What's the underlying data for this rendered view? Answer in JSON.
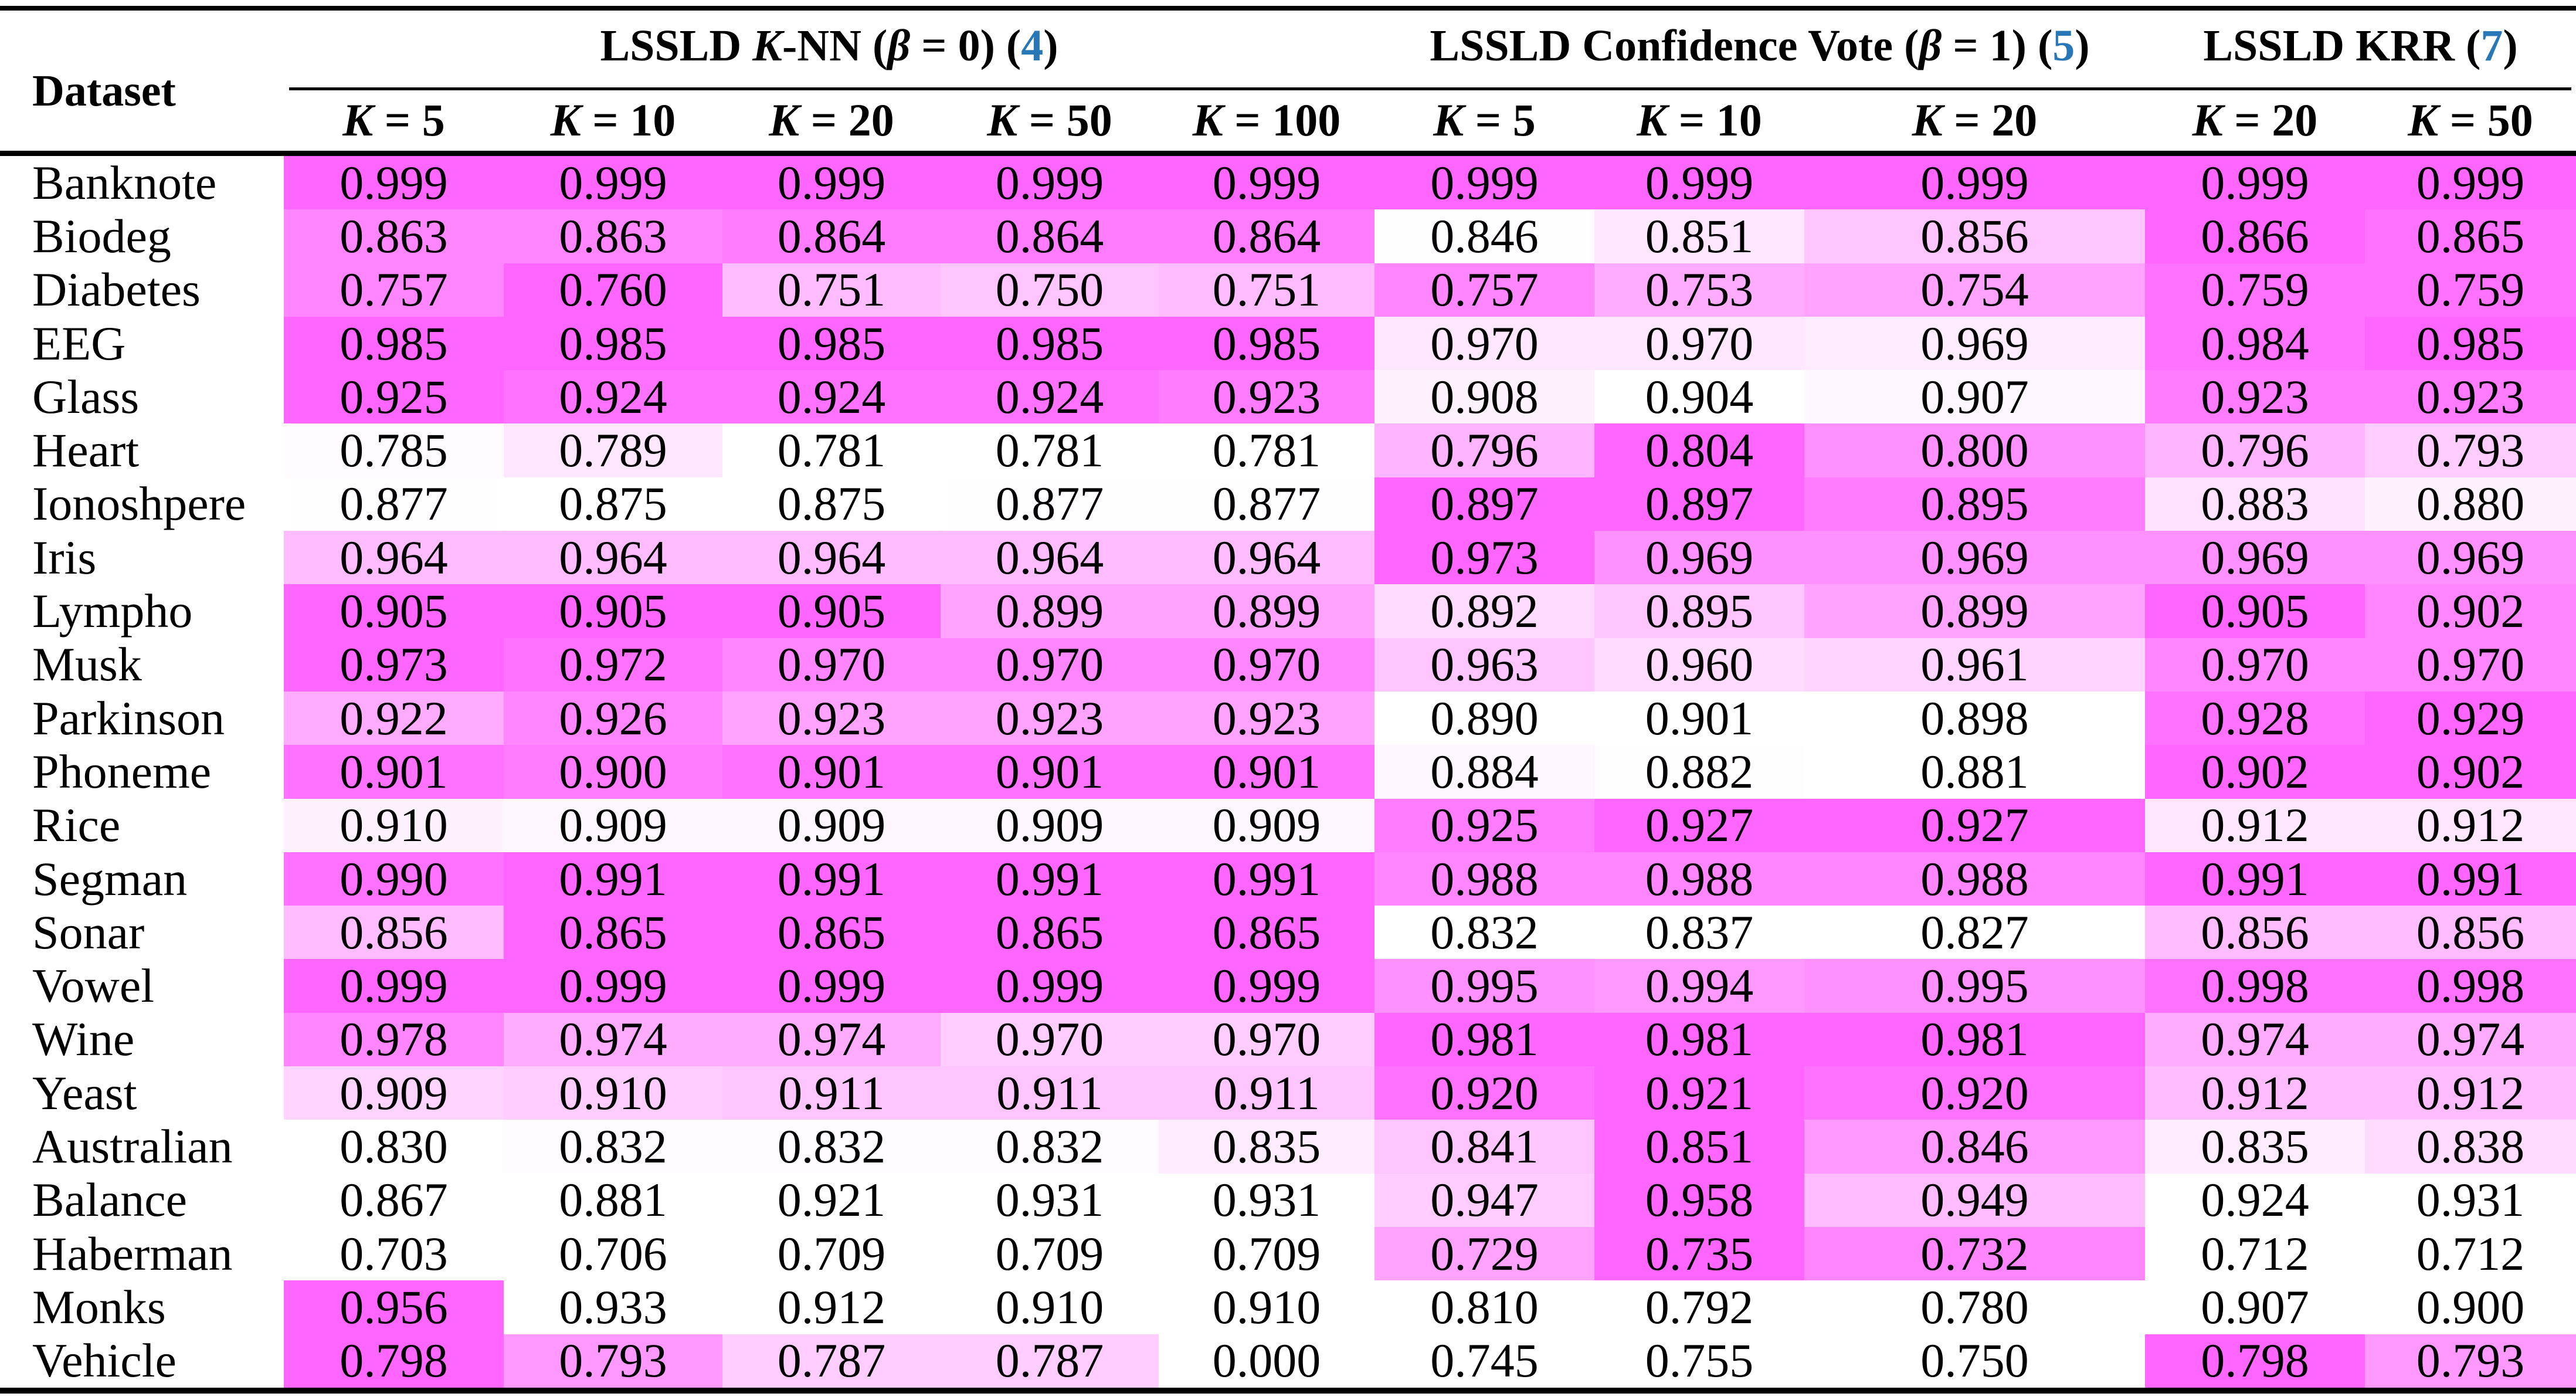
{
  "heatmap": {
    "max_color": "#ff66ff",
    "min_color": "#ffffff",
    "window": 0.021,
    "gamma": 1.5
  },
  "link_color": "#2878b8",
  "table": {
    "dataset_header": "Dataset",
    "groups": [
      {
        "title": "LSSLD K-NN (β = 0)",
        "ref": "4",
        "columns": [
          "K = 5",
          "K = 10",
          "K = 20",
          "K = 50",
          "K = 100"
        ]
      },
      {
        "title": "LSSLD Confidence Vote (β = 1)",
        "ref": "5",
        "columns": [
          "K = 5",
          "K = 10",
          "K = 20"
        ]
      },
      {
        "title": "LSSLD KRR",
        "ref": "7",
        "columns": [
          "K = 20",
          "K = 50"
        ]
      }
    ],
    "rows": [
      {
        "label": "Banknote",
        "values": [
          0.999,
          0.999,
          0.999,
          0.999,
          0.999,
          0.999,
          0.999,
          0.999,
          0.999,
          0.999
        ]
      },
      {
        "label": "Biodeg",
        "values": [
          0.863,
          0.863,
          0.864,
          0.864,
          0.864,
          0.846,
          0.851,
          0.856,
          0.866,
          0.865
        ]
      },
      {
        "label": "Diabetes",
        "values": [
          0.757,
          0.76,
          0.751,
          0.75,
          0.751,
          0.757,
          0.753,
          0.754,
          0.759,
          0.759
        ]
      },
      {
        "label": "EEG",
        "values": [
          0.985,
          0.985,
          0.985,
          0.985,
          0.985,
          0.97,
          0.97,
          0.969,
          0.984,
          0.985
        ]
      },
      {
        "label": "Glass",
        "values": [
          0.925,
          0.924,
          0.924,
          0.924,
          0.923,
          0.908,
          0.904,
          0.907,
          0.923,
          0.923
        ]
      },
      {
        "label": "Heart",
        "values": [
          0.785,
          0.789,
          0.781,
          0.781,
          0.781,
          0.796,
          0.804,
          0.8,
          0.796,
          0.793
        ]
      },
      {
        "label": "Ionoshpere",
        "values": [
          0.877,
          0.875,
          0.875,
          0.877,
          0.877,
          0.897,
          0.897,
          0.895,
          0.883,
          0.88
        ]
      },
      {
        "label": "Iris",
        "values": [
          0.964,
          0.964,
          0.964,
          0.964,
          0.964,
          0.973,
          0.969,
          0.969,
          0.969,
          0.969
        ]
      },
      {
        "label": "Lympho",
        "values": [
          0.905,
          0.905,
          0.905,
          0.899,
          0.899,
          0.892,
          0.895,
          0.899,
          0.905,
          0.902
        ]
      },
      {
        "label": "Musk",
        "values": [
          0.973,
          0.972,
          0.97,
          0.97,
          0.97,
          0.963,
          0.96,
          0.961,
          0.97,
          0.97
        ]
      },
      {
        "label": "Parkinson",
        "values": [
          0.922,
          0.926,
          0.923,
          0.923,
          0.923,
          0.89,
          0.901,
          0.898,
          0.928,
          0.929
        ]
      },
      {
        "label": "Phoneme",
        "values": [
          0.901,
          0.9,
          0.901,
          0.901,
          0.901,
          0.884,
          0.882,
          0.881,
          0.902,
          0.902
        ]
      },
      {
        "label": "Rice",
        "values": [
          0.91,
          0.909,
          0.909,
          0.909,
          0.909,
          0.925,
          0.927,
          0.927,
          0.912,
          0.912
        ]
      },
      {
        "label": "Segman",
        "values": [
          0.99,
          0.991,
          0.991,
          0.991,
          0.991,
          0.988,
          0.988,
          0.988,
          0.991,
          0.991
        ]
      },
      {
        "label": "Sonar",
        "values": [
          0.856,
          0.865,
          0.865,
          0.865,
          0.865,
          0.832,
          0.837,
          0.827,
          0.856,
          0.856
        ]
      },
      {
        "label": "Vowel",
        "values": [
          0.999,
          0.999,
          0.999,
          0.999,
          0.999,
          0.995,
          0.994,
          0.995,
          0.998,
          0.998
        ]
      },
      {
        "label": "Wine",
        "values": [
          0.978,
          0.974,
          0.974,
          0.97,
          0.97,
          0.981,
          0.981,
          0.981,
          0.974,
          0.974
        ]
      },
      {
        "label": "Yeast",
        "values": [
          0.909,
          0.91,
          0.911,
          0.911,
          0.911,
          0.92,
          0.921,
          0.92,
          0.912,
          0.912
        ]
      },
      {
        "label": "Australian",
        "values": [
          0.83,
          0.832,
          0.832,
          0.832,
          0.835,
          0.841,
          0.851,
          0.846,
          0.835,
          0.838
        ]
      },
      {
        "label": "Balance",
        "values": [
          0.867,
          0.881,
          0.921,
          0.931,
          0.931,
          0.947,
          0.958,
          0.949,
          0.924,
          0.931
        ]
      },
      {
        "label": "Haberman",
        "values": [
          0.703,
          0.706,
          0.709,
          0.709,
          0.709,
          0.729,
          0.735,
          0.732,
          0.712,
          0.712
        ]
      },
      {
        "label": "Monks",
        "values": [
          0.956,
          0.933,
          0.912,
          0.91,
          0.91,
          0.81,
          0.792,
          0.78,
          0.907,
          0.9
        ]
      },
      {
        "label": "Vehicle",
        "values": [
          0.798,
          0.793,
          0.787,
          0.787,
          0.0,
          0.745,
          0.755,
          0.75,
          0.798,
          0.793
        ]
      }
    ]
  }
}
